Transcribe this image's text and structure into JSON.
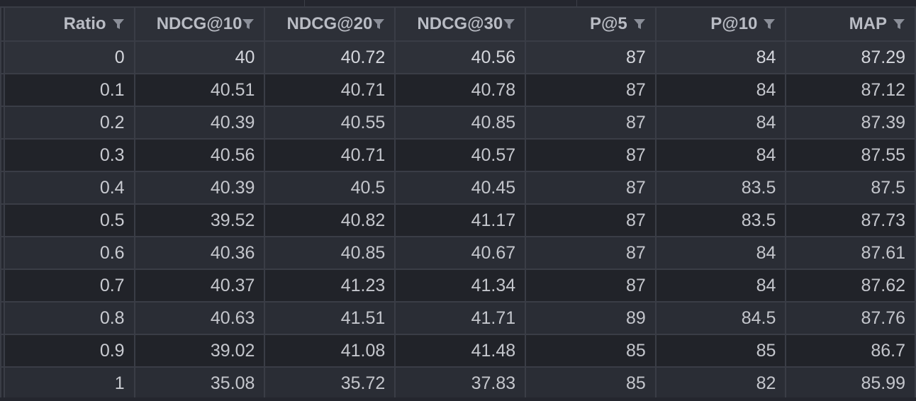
{
  "table": {
    "columns": [
      "Ratio",
      "NDCG@10",
      "NDCG@20",
      "NDCG@30",
      "P@5",
      "P@10",
      "MAP"
    ],
    "rows": [
      [
        "0",
        "40",
        "40.72",
        "40.56",
        "87",
        "84",
        "87.29"
      ],
      [
        "0.1",
        "40.51",
        "40.71",
        "40.78",
        "87",
        "84",
        "87.12"
      ],
      [
        "0.2",
        "40.39",
        "40.55",
        "40.85",
        "87",
        "84",
        "87.39"
      ],
      [
        "0.3",
        "40.56",
        "40.71",
        "40.57",
        "87",
        "84",
        "87.55"
      ],
      [
        "0.4",
        "40.39",
        "40.5",
        "40.45",
        "87",
        "83.5",
        "87.5"
      ],
      [
        "0.5",
        "39.52",
        "40.82",
        "41.17",
        "87",
        "83.5",
        "87.73"
      ],
      [
        "0.6",
        "40.36",
        "40.85",
        "40.67",
        "87",
        "84",
        "87.61"
      ],
      [
        "0.7",
        "40.37",
        "41.23",
        "41.34",
        "87",
        "84",
        "87.62"
      ],
      [
        "0.8",
        "40.63",
        "41.51",
        "41.71",
        "89",
        "84.5",
        "87.76"
      ],
      [
        "0.9",
        "39.02",
        "41.08",
        "41.48",
        "85",
        "85",
        "86.7"
      ],
      [
        "1",
        "35.08",
        "35.72",
        "37.83",
        "85",
        "82",
        "85.99"
      ]
    ]
  },
  "icons": {
    "column_filter": "filter-icon"
  },
  "colors": {
    "background": "#24262e",
    "header_bg": "#2d3038",
    "header_text": "#b9bcc4",
    "cell_text": "#c4c6cc",
    "grid_line": "#3a3d46",
    "row_alt_a": "#2a2d35",
    "row_alt_b": "#212329"
  }
}
